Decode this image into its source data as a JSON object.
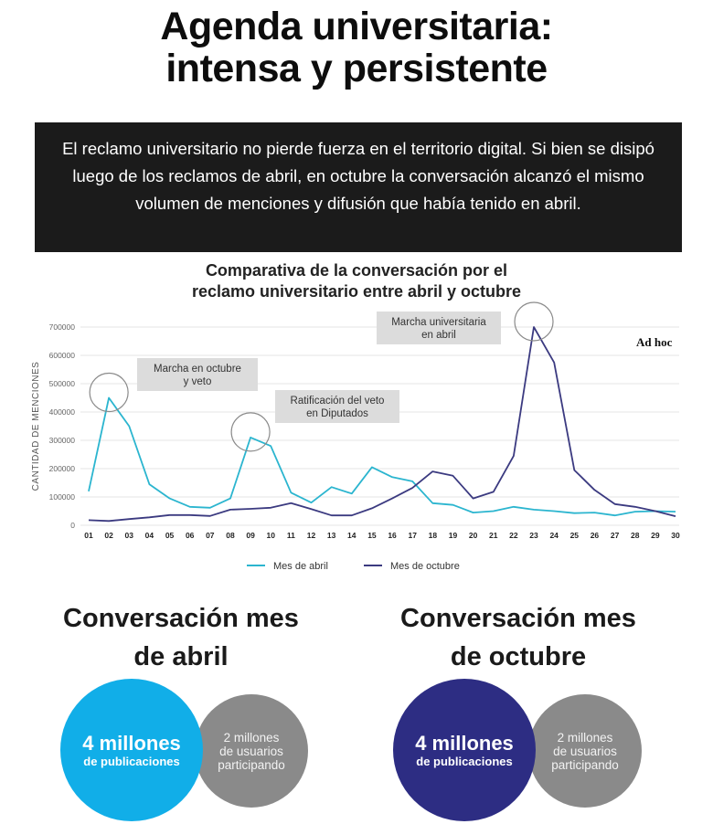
{
  "header": {
    "title_line1": "Agenda universitaria:",
    "title_line2": "intensa y persistente"
  },
  "intro": {
    "text": "El reclamo universitario no pierde fuerza en el territorio digital. Si bien se disipó luego de los reclamos de abril, en octubre la conversación alcanzó el mismo volumen de menciones y difusión que había tenido en abril."
  },
  "chart_data": {
    "type": "line",
    "title": "Comparativa de la conversación por el reclamo universitario entre abril y octubre",
    "title_line1": "Comparativa de la conversación por el",
    "title_line2": "reclamo universitario entre abril y octubre",
    "ylabel": "CANTIDAD DE MENCIONES",
    "xlabel": "",
    "ylim": [
      0,
      700000
    ],
    "yticks": [
      0,
      100000,
      200000,
      300000,
      400000,
      500000,
      600000,
      700000
    ],
    "grid": true,
    "legend_position": "bottom-center",
    "x": [
      "01",
      "02",
      "03",
      "04",
      "05",
      "06",
      "07",
      "08",
      "09",
      "10",
      "11",
      "12",
      "13",
      "14",
      "15",
      "16",
      "17",
      "18",
      "19",
      "20",
      "21",
      "22",
      "23",
      "24",
      "25",
      "26",
      "27",
      "28",
      "29",
      "30"
    ],
    "series": [
      {
        "name": "Mes de abril",
        "color": "#2bb5cf",
        "values": [
          120000,
          450000,
          350000,
          145000,
          95000,
          65000,
          62000,
          95000,
          310000,
          280000,
          115000,
          80000,
          135000,
          112000,
          205000,
          170000,
          155000,
          78000,
          72000,
          45000,
          50000,
          65000,
          55000,
          50000,
          43000,
          45000,
          35000,
          48000,
          50000,
          48000
        ]
      },
      {
        "name": "Mes de octubre",
        "color": "#3b3a80",
        "values": [
          18000,
          15000,
          22000,
          28000,
          36000,
          36000,
          33000,
          55000,
          58000,
          62000,
          78000,
          57000,
          35000,
          35000,
          60000,
          95000,
          132000,
          190000,
          175000,
          95000,
          118000,
          245000,
          700000,
          575000,
          195000,
          125000,
          75000,
          65000,
          50000,
          32000
        ]
      }
    ],
    "annotations": [
      {
        "text": "Marcha en octubre y veto",
        "line1": "Marcha en octubre",
        "line2": "y veto",
        "x": "02"
      },
      {
        "text": "Ratificación del veto en Diputados",
        "line1": "Ratificación del veto",
        "line2": "en Diputados",
        "x": "09"
      },
      {
        "text": "Marcha universitaria en abril",
        "line1": "Marcha universitaria",
        "line2": "en abril",
        "x": "23"
      }
    ],
    "watermark": "Ad hoc"
  },
  "stats": {
    "april": {
      "heading_line1": "Conversación mes",
      "heading_line2": "de abril",
      "big_number": "4 millones",
      "big_sub": "de publicaciones",
      "small_line1": "2 millones",
      "small_line2": "de usuarios",
      "small_line3": "participando",
      "color": "#11aee8"
    },
    "october": {
      "heading_line1": "Conversación mes",
      "heading_line2": "de octubre",
      "big_number": "4 millones",
      "big_sub": "de publicaciones",
      "small_line1": "2 millones",
      "small_line2": "de usuarios",
      "small_line3": "participando",
      "color": "#2d2d83"
    }
  }
}
